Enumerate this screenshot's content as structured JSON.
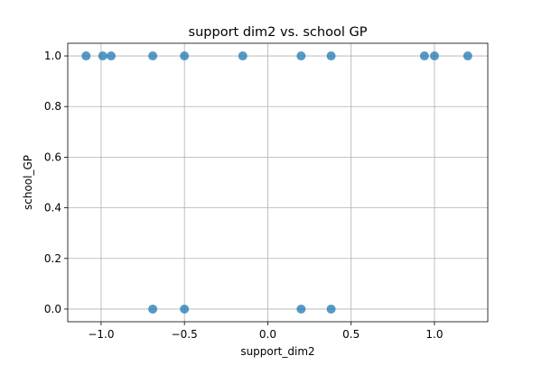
{
  "chart_data": {
    "type": "scatter",
    "title": "support dim2 vs. school GP",
    "xlabel": "support_dim2",
    "ylabel": "school_GP",
    "xlim": [
      -1.2,
      1.32
    ],
    "ylim": [
      -0.05,
      1.05
    ],
    "xticks": [
      -1.0,
      -0.5,
      0.0,
      0.5,
      1.0
    ],
    "xtick_labels": [
      "−1.0",
      "−0.5",
      "0.0",
      "0.5",
      "1.0"
    ],
    "yticks": [
      0.0,
      0.2,
      0.4,
      0.6,
      0.8,
      1.0
    ],
    "ytick_labels": [
      "0.0",
      "0.2",
      "0.4",
      "0.6",
      "0.8",
      "1.0"
    ],
    "grid": true,
    "marker_color": "#1f77b4",
    "points": [
      {
        "x": -1.09,
        "y": 1
      },
      {
        "x": -0.99,
        "y": 1
      },
      {
        "x": -0.94,
        "y": 1
      },
      {
        "x": -0.69,
        "y": 1
      },
      {
        "x": -0.5,
        "y": 1
      },
      {
        "x": -0.15,
        "y": 1
      },
      {
        "x": 0.2,
        "y": 1
      },
      {
        "x": 0.38,
        "y": 1
      },
      {
        "x": 0.94,
        "y": 1
      },
      {
        "x": 1.0,
        "y": 1
      },
      {
        "x": 1.2,
        "y": 1
      },
      {
        "x": -0.69,
        "y": 0
      },
      {
        "x": -0.5,
        "y": 0
      },
      {
        "x": 0.2,
        "y": 0
      },
      {
        "x": 0.38,
        "y": 0
      }
    ]
  }
}
